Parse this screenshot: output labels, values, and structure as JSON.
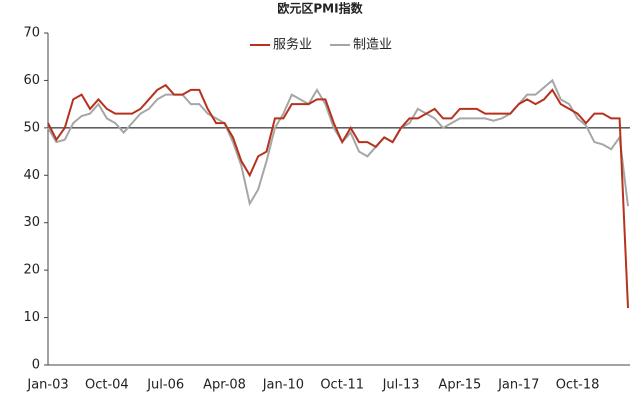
{
  "chart_data": {
    "type": "line",
    "title": "欧元区PMI指数",
    "categories": [
      "Jan-03",
      null,
      null,
      null,
      null,
      null,
      null,
      "Oct-04",
      null,
      null,
      null,
      null,
      null,
      null,
      "Jul-06",
      null,
      null,
      null,
      null,
      null,
      null,
      "Apr-08",
      null,
      null,
      null,
      null,
      null,
      null,
      "Jan-10",
      null,
      null,
      null,
      null,
      null,
      null,
      "Oct-11",
      null,
      null,
      null,
      null,
      null,
      null,
      "Jul-13",
      null,
      null,
      null,
      null,
      null,
      null,
      "Apr-15",
      null,
      null,
      null,
      null,
      null,
      null,
      "Jan-17",
      null,
      null,
      null,
      null,
      null,
      null,
      "Oct-18",
      null,
      null,
      null,
      null,
      null,
      null
    ],
    "series": [
      {
        "name": "服务业",
        "color": "#b5321e",
        "values": [
          51,
          47.5,
          50,
          56,
          57,
          54,
          56,
          54,
          53,
          53,
          53,
          54,
          56,
          58,
          59,
          57,
          57,
          58,
          58,
          54,
          51,
          51,
          48,
          43,
          40,
          44,
          45,
          52,
          52,
          55,
          55,
          55,
          56,
          56,
          51,
          47,
          50,
          47,
          47,
          46,
          48,
          47,
          50,
          52,
          52,
          53,
          54,
          52,
          52,
          54,
          54,
          54,
          53,
          53,
          53,
          53,
          55,
          56,
          55,
          56,
          58,
          55,
          54,
          53,
          51,
          53,
          53,
          52,
          52,
          12
        ]
      },
      {
        "name": "制造业",
        "color": "#a6a6a6",
        "values": [
          50,
          47,
          47.5,
          51,
          52.5,
          53,
          55,
          52,
          51,
          49,
          51,
          53,
          54,
          56,
          57,
          57,
          57,
          55,
          55,
          53,
          52,
          51,
          47,
          42,
          34,
          37,
          43,
          50,
          53,
          57,
          56,
          55,
          58,
          55,
          50,
          47,
          49,
          45,
          44,
          46,
          48,
          47,
          50,
          51,
          54,
          53,
          52,
          50,
          51,
          52,
          52,
          52,
          52,
          51.5,
          52,
          53,
          55,
          57,
          57,
          58.5,
          60,
          56,
          55,
          52,
          50.5,
          47,
          46.5,
          45.5,
          48,
          33.5
        ]
      }
    ],
    "ylim": [
      0,
      70
    ],
    "yticks": [
      0,
      10,
      20,
      30,
      40,
      50,
      60,
      70
    ],
    "reference_line": 50,
    "legend": "top"
  }
}
